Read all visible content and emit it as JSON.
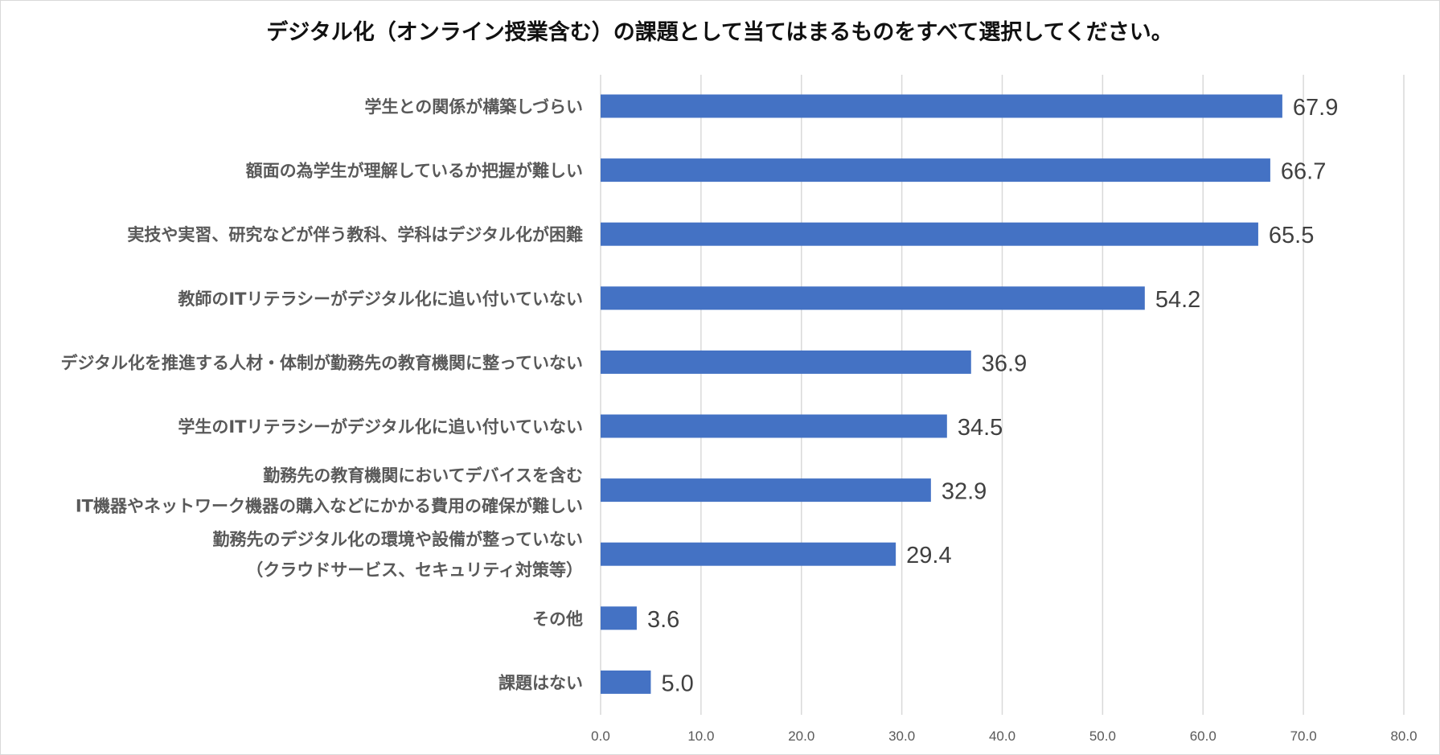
{
  "chart_data": {
    "type": "bar",
    "orientation": "horizontal",
    "title": "デジタル化（オンライン授業含む）の課題として当てはまるものをすべて選択してください。",
    "categories": [
      [
        "学生との関係が構築しづらい"
      ],
      [
        "額面の為学生が理解しているか把握が難しい"
      ],
      [
        "実技や実習、研究などが伴う教科、学科はデジタル化が困難"
      ],
      [
        "教師のITリテラシーがデジタル化に追い付いていない"
      ],
      [
        "デジタル化を推進する人材・体制が勤務先の教育機関に整っていない"
      ],
      [
        "学生のITリテラシーがデジタル化に追い付いていない"
      ],
      [
        "勤務先の教育機関においてデバイスを含む",
        "IT機器やネットワーク機器の購入などにかかる費用の確保が難しい"
      ],
      [
        "勤務先のデジタル化の環境や設備が整っていない",
        "（クラウドサービス、セキュリティ対策等）"
      ],
      [
        "その他"
      ],
      [
        "課題はない"
      ]
    ],
    "values": [
      67.9,
      66.7,
      65.5,
      54.2,
      36.9,
      34.5,
      32.9,
      29.4,
      3.6,
      5.0
    ],
    "value_labels": [
      "67.9",
      "66.7",
      "65.5",
      "54.2",
      "36.9",
      "34.5",
      "32.9",
      "29.4",
      "3.6",
      "5.0"
    ],
    "xlim": [
      0,
      80
    ],
    "ticks": [
      0,
      10,
      20,
      30,
      40,
      50,
      60,
      70,
      80
    ],
    "tick_labels": [
      "0.0",
      "10.0",
      "20.0",
      "30.0",
      "40.0",
      "50.0",
      "60.0",
      "70.0",
      "80.0"
    ],
    "grid": "vertical",
    "legend": "none",
    "colors": {
      "bar": "#4472c4",
      "grid": "#d9d9d9",
      "text": "#595959"
    }
  }
}
